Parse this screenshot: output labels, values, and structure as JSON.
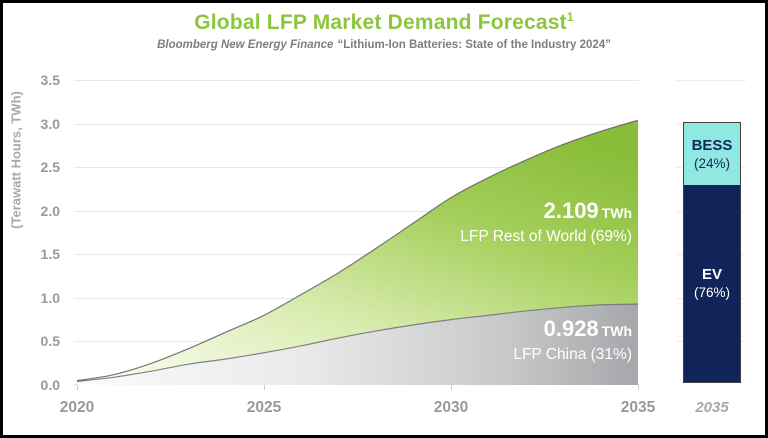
{
  "title": {
    "text": "Global LFP Market Demand Forecast",
    "superscript": "1"
  },
  "subtitle": {
    "source": "Bloomberg New Energy Finance",
    "report": "“Lithium-Ion Batteries: State of the Industry 2024”"
  },
  "colors": {
    "title_green": "#8CC63F",
    "subtitle_gray": "#7C7E81",
    "axis_gray": "#97999C",
    "axis_title_gray": "#A6A8AB",
    "gridline": "#E8E8E9",
    "green_gradient": [
      "#FCFEF6",
      "#D8EBAE",
      "#A4CF5B",
      "#8ABD3A"
    ],
    "green_edge": "#5E5F61",
    "gray_gradient": [
      "#FBFBFB",
      "#EAEAEB",
      "#C9CACB",
      "#A5A7AA"
    ],
    "gray_edge": "#6E6F71",
    "annotation_text": "#FFFFFF",
    "bess_fill": "#8FE8E1",
    "ev_fill": "#102459",
    "bar_border": "#404040",
    "bess_text": "#14285A",
    "ev_text": "#FFFFFF",
    "bar_year_gray": "#A7A9AC"
  },
  "chart_data": {
    "type": "area",
    "title": "Global LFP Market Demand Forecast",
    "ylabel": "(Terawatt Hours, TWh)",
    "xlabel": "",
    "ylim": [
      0,
      3.5
    ],
    "grid": true,
    "yticks": [
      "0.0",
      "0.5",
      "1.0",
      "1.5",
      "2.0",
      "2.5",
      "3.0",
      "3.5"
    ],
    "xticks": [
      2020,
      2025,
      2030,
      2035
    ],
    "x": [
      2020,
      2021,
      2022,
      2023,
      2024,
      2025,
      2026,
      2027,
      2028,
      2029,
      2030,
      2031,
      2032,
      2033,
      2034,
      2035
    ],
    "series": [
      {
        "name": "LFP China",
        "share_pct": 31,
        "value_2035_twh": 0.928,
        "values": [
          0.04,
          0.09,
          0.16,
          0.24,
          0.3,
          0.37,
          0.45,
          0.54,
          0.62,
          0.69,
          0.75,
          0.8,
          0.85,
          0.89,
          0.92,
          0.928
        ]
      },
      {
        "name": "LFP Rest of World",
        "share_pct": 69,
        "value_2035_twh": 2.109,
        "values": [
          0.01,
          0.03,
          0.09,
          0.18,
          0.31,
          0.43,
          0.59,
          0.75,
          0.95,
          1.17,
          1.4,
          1.58,
          1.73,
          1.87,
          1.99,
          2.109
        ]
      }
    ],
    "annotations": {
      "rest_of_world": {
        "value": "2.109",
        "unit": "TWh",
        "label": "LFP Rest of World (69%)"
      },
      "china": {
        "value": "0.928",
        "unit": "TWh",
        "label": "LFP China (31%)"
      }
    },
    "bar_2035": {
      "year_label": "2035",
      "segments": [
        {
          "name": "BESS",
          "label": "BESS",
          "pct_label": "(24%)",
          "fraction": 0.24
        },
        {
          "name": "EV",
          "label": "EV",
          "pct_label": "(76%)",
          "fraction": 0.76
        }
      ]
    }
  }
}
